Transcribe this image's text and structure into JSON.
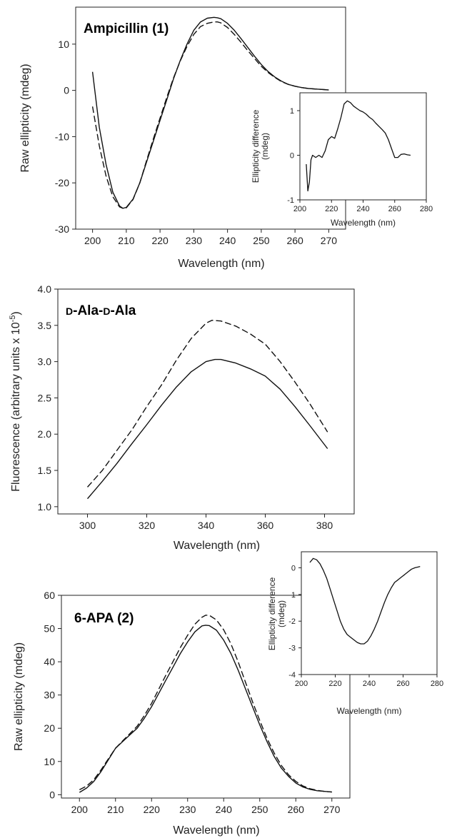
{
  "chart_data": [
    {
      "type": "line",
      "title": "Ampicillin (1)",
      "xlabel": "Wavelength (nm)",
      "ylabel": "Raw ellipticity (mdeg)",
      "xlim": [
        195,
        275
      ],
      "ylim": [
        -30,
        18
      ],
      "xticks": [
        200,
        210,
        220,
        230,
        240,
        250,
        260,
        270
      ],
      "yticks": [
        -30,
        -20,
        -10,
        0,
        10
      ],
      "grid": false,
      "series": [
        {
          "style": "solid",
          "x": [
            200,
            202,
            204,
            206,
            208,
            209,
            210,
            212,
            214,
            216,
            218,
            220,
            222,
            224,
            226,
            228,
            230,
            232,
            234,
            236,
            237,
            238,
            240,
            242,
            244,
            246,
            248,
            250,
            252,
            254,
            256,
            258,
            260,
            262,
            264,
            266,
            268,
            270
          ],
          "y": [
            4,
            -8,
            -16,
            -22,
            -25,
            -25.5,
            -25.3,
            -23.5,
            -20,
            -15.5,
            -11,
            -6.5,
            -2,
            2.5,
            6.5,
            10,
            13,
            14.8,
            15.6,
            15.8,
            15.7,
            15.5,
            14.5,
            13,
            11.2,
            9.3,
            7.4,
            5.6,
            4.1,
            2.9,
            2,
            1.3,
            0.9,
            0.6,
            0.4,
            0.3,
            0.2,
            0.1
          ]
        },
        {
          "style": "dashed",
          "x": [
            200,
            202,
            204,
            206,
            208,
            209,
            210,
            212,
            214,
            216,
            218,
            220,
            222,
            224,
            226,
            228,
            230,
            232,
            234,
            236,
            237,
            238,
            240,
            242,
            244,
            246,
            248,
            250,
            252,
            254,
            256,
            258,
            260,
            262,
            264,
            266,
            268,
            270
          ],
          "y": [
            -3.5,
            -12,
            -18.5,
            -23,
            -25.2,
            -25.5,
            -25.4,
            -23.6,
            -20,
            -15.2,
            -10.5,
            -6,
            -1.5,
            2.7,
            6.4,
            9.5,
            12.1,
            13.8,
            14.5,
            14.8,
            14.8,
            14.6,
            13.6,
            12.1,
            10.4,
            8.6,
            6.9,
            5.2,
            3.9,
            2.8,
            1.9,
            1.3,
            0.9,
            0.6,
            0.4,
            0.3,
            0.2,
            0.1
          ]
        }
      ],
      "inset": {
        "type": "line",
        "xlabel": "Wavelength (nm)",
        "ylabel": "Ellipticity difference (mdeg)",
        "ylabel_lines": [
          "Ellipticity difference",
          "(mdeg)"
        ],
        "xlim": [
          200,
          280
        ],
        "ylim": [
          -1,
          1.4
        ],
        "xticks": [
          200,
          220,
          240,
          260,
          280
        ],
        "yticks": [
          -1,
          0,
          1
        ],
        "series": [
          {
            "style": "solid",
            "x": [
              204,
              205,
              206,
              207,
              208,
              210,
              212,
              214,
              216,
              218,
              220,
              222,
              224,
              226,
              228,
              230,
              232,
              234,
              236,
              238,
              240,
              242,
              244,
              246,
              248,
              250,
              252,
              254,
              256,
              258,
              260,
              262,
              264,
              266,
              268,
              270
            ],
            "y": [
              -0.2,
              -0.8,
              -0.6,
              -0.1,
              0,
              -0.05,
              0,
              -0.05,
              0.1,
              0.35,
              0.42,
              0.38,
              0.6,
              0.85,
              1.15,
              1.22,
              1.18,
              1.1,
              1.05,
              1.0,
              0.97,
              0.92,
              0.85,
              0.8,
              0.72,
              0.65,
              0.58,
              0.5,
              0.35,
              0.15,
              -0.05,
              -0.05,
              0.02,
              0.03,
              0.01,
              0
            ]
          }
        ]
      }
    },
    {
      "type": "line",
      "title": "D-Ala-D-Ala",
      "title_parts": [
        {
          "text": "D",
          "small": true
        },
        {
          "text": "-Ala-",
          "small": false
        },
        {
          "text": "D",
          "small": true
        },
        {
          "text": "-Ala",
          "small": false
        }
      ],
      "xlabel": "Wavelength (nm)",
      "ylabel": "Fluorescence (arbitrary units x 10",
      "ylabel_sup": "-5",
      "ylabel_end": ")",
      "xlim": [
        290,
        390
      ],
      "ylim": [
        0.9,
        4.0
      ],
      "xticks": [
        300,
        320,
        340,
        360,
        380
      ],
      "yticks": [
        1.0,
        1.5,
        2.0,
        2.5,
        3.0,
        3.5,
        4.0
      ],
      "grid": false,
      "series": [
        {
          "style": "solid",
          "x": [
            300,
            305,
            310,
            315,
            320,
            325,
            330,
            335,
            340,
            343,
            345,
            350,
            355,
            360,
            365,
            370,
            375,
            381
          ],
          "y": [
            1.11,
            1.35,
            1.6,
            1.87,
            2.13,
            2.4,
            2.65,
            2.86,
            3.0,
            3.03,
            3.03,
            2.98,
            2.9,
            2.8,
            2.62,
            2.38,
            2.12,
            1.8
          ]
        },
        {
          "style": "dashed",
          "x": [
            300,
            305,
            310,
            315,
            320,
            325,
            330,
            335,
            340,
            342,
            345,
            350,
            355,
            360,
            365,
            370,
            375,
            381
          ],
          "y": [
            1.27,
            1.5,
            1.78,
            2.06,
            2.38,
            2.68,
            3.02,
            3.32,
            3.53,
            3.57,
            3.56,
            3.49,
            3.38,
            3.24,
            3.0,
            2.72,
            2.42,
            2.03
          ]
        }
      ]
    },
    {
      "type": "line",
      "title": "6-APA (2)",
      "xlabel": "Wavelength (nm)",
      "ylabel": "Raw ellipticity (mdeg)",
      "xlim": [
        195,
        275
      ],
      "ylim": [
        -1,
        60
      ],
      "xticks": [
        200,
        210,
        220,
        230,
        240,
        250,
        260,
        270
      ],
      "yticks": [
        0,
        10,
        20,
        30,
        40,
        50,
        60
      ],
      "grid": false,
      "series": [
        {
          "style": "solid",
          "x": [
            200,
            202,
            204,
            206,
            208,
            210,
            212,
            214,
            216,
            218,
            220,
            222,
            224,
            226,
            228,
            230,
            232,
            234,
            235,
            236,
            238,
            240,
            242,
            244,
            246,
            248,
            250,
            252,
            254,
            256,
            258,
            260,
            262,
            264,
            266,
            268,
            270
          ],
          "y": [
            0.7,
            2,
            4,
            7,
            10.5,
            14,
            16,
            18,
            20,
            23,
            26.5,
            30.5,
            34.5,
            38.5,
            42.5,
            46,
            49,
            50.8,
            51,
            50.9,
            49.5,
            46.5,
            42.5,
            37.5,
            32,
            26.5,
            21,
            16,
            11.5,
            8,
            5.5,
            3.5,
            2.3,
            1.6,
            1.2,
            1,
            0.8
          ]
        },
        {
          "style": "dashed",
          "x": [
            200,
            202,
            204,
            206,
            208,
            210,
            212,
            214,
            216,
            218,
            220,
            222,
            224,
            226,
            228,
            230,
            232,
            234,
            235,
            236,
            238,
            240,
            242,
            244,
            246,
            248,
            250,
            252,
            254,
            256,
            258,
            260,
            262,
            264,
            266,
            268,
            270
          ],
          "y": [
            1.5,
            2.6,
            4.5,
            7.5,
            10.8,
            14,
            16.2,
            18.4,
            20.6,
            23.8,
            27.5,
            31.8,
            36,
            40.2,
            44.3,
            48,
            51.3,
            53.4,
            54,
            54,
            52.6,
            49.6,
            45.4,
            40,
            34,
            28,
            22.3,
            17,
            12.5,
            8.8,
            6,
            4,
            2.6,
            1.8,
            1.3,
            1,
            0.8
          ]
        }
      ],
      "inset": {
        "type": "line",
        "xlabel": "Wavelength (nm)",
        "ylabel": "Ellipticity difference (mdeg)",
        "ylabel_lines": [
          "Ellipticity difference",
          "(mdeg)"
        ],
        "xlim": [
          200,
          280
        ],
        "ylim": [
          -4,
          0.6
        ],
        "xticks": [
          200,
          220,
          240,
          260,
          280
        ],
        "yticks": [
          -4,
          -3,
          -2,
          -1,
          0
        ],
        "series": [
          {
            "style": "solid",
            "x": [
              205,
              207,
              209,
              211,
              213,
              215,
              217,
              219,
              221,
              223,
              225,
              227,
              229,
              231,
              233,
              235,
              237,
              239,
              241,
              243,
              245,
              247,
              249,
              251,
              253,
              255,
              257,
              259,
              261,
              263,
              265,
              267,
              269,
              270
            ],
            "y": [
              0.2,
              0.35,
              0.3,
              0.15,
              -0.1,
              -0.4,
              -0.8,
              -1.2,
              -1.6,
              -2.0,
              -2.3,
              -2.5,
              -2.6,
              -2.7,
              -2.8,
              -2.85,
              -2.85,
              -2.75,
              -2.55,
              -2.3,
              -2.0,
              -1.65,
              -1.3,
              -1.0,
              -0.75,
              -0.55,
              -0.45,
              -0.35,
              -0.25,
              -0.15,
              -0.05,
              0.0,
              0.03,
              0.05
            ]
          }
        ]
      }
    }
  ]
}
